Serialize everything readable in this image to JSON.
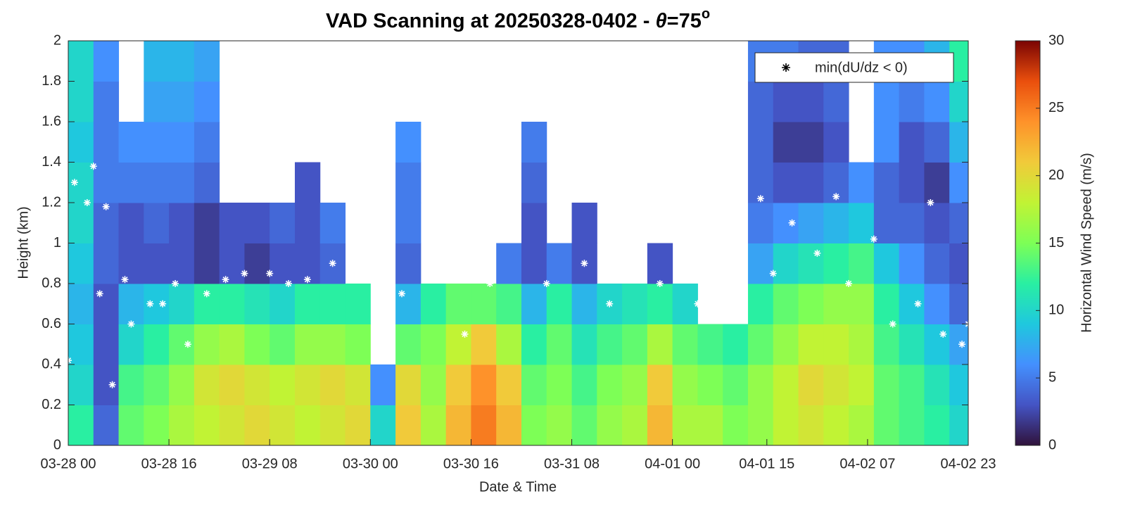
{
  "chart_data": {
    "type": "heatmap",
    "title_parts": [
      "VAD Scanning at 20250328-0402 - ",
      "θ",
      "=75",
      "o"
    ],
    "x_label": "Date & Time",
    "y_label": "Height (km)",
    "colorbar_label": "Horizontal Wind Speed (m/s)",
    "xlim": [
      "03-28 00",
      "04-02 23"
    ],
    "xticks": [
      "03-28 00",
      "03-28 16",
      "03-29 08",
      "03-30 00",
      "03-30 16",
      "03-31 08",
      "04-01 00",
      "04-01 15",
      "04-02 07",
      "04-02 23"
    ],
    "ylim": [
      0,
      2
    ],
    "yticks": [
      0,
      0.2,
      0.4,
      0.6,
      0.8,
      1,
      1.2,
      1.4,
      1.6,
      1.8,
      2
    ],
    "clim": [
      0,
      30
    ],
    "cticks": [
      0,
      5,
      10,
      15,
      20,
      25,
      30
    ],
    "colormap": [
      "#30123b",
      "#4454c4",
      "#4490fe",
      "#1fc8de",
      "#29efa2",
      "#7dff56",
      "#c1f334",
      "#f1ca3a",
      "#fe922a",
      "#ea4f0d",
      "#7a0403"
    ],
    "x_bins": [
      "03-28 00",
      "03-28 04",
      "03-28 08",
      "03-28 12",
      "03-28 16",
      "03-28 20",
      "03-29 00",
      "03-29 04",
      "03-29 08",
      "03-29 12",
      "03-29 16",
      "03-29 20",
      "03-30 00",
      "03-30 04",
      "03-30 08",
      "03-30 12",
      "03-30 16",
      "03-30 20",
      "03-31 00",
      "03-31 04",
      "03-31 08",
      "03-31 12",
      "03-31 16",
      "03-31 20",
      "04-01 00",
      "04-01 04",
      "04-01 08",
      "04-01 12",
      "04-01 16",
      "04-01 20",
      "04-02 00",
      "04-02 04",
      "04-02 08",
      "04-02 12",
      "04-02 16",
      "04-02 20",
      "04-02 23"
    ],
    "y_bins": [
      0,
      0.2,
      0.4,
      0.6,
      0.8,
      1,
      1.2,
      1.4,
      1.6,
      1.8,
      2
    ],
    "z": [
      [
        12,
        10,
        9,
        8,
        9,
        10,
        10,
        9,
        10,
        10
      ],
      [
        4,
        3,
        3,
        3,
        4,
        4,
        5,
        5,
        5,
        6
      ],
      [
        14,
        13,
        10,
        8,
        3,
        3,
        5,
        6,
        null,
        null
      ],
      [
        15,
        14,
        12,
        9,
        3,
        4,
        5,
        6,
        7,
        8
      ],
      [
        17,
        16,
        14,
        10,
        3,
        3,
        5,
        6,
        7,
        8
      ],
      [
        18,
        19,
        16,
        12,
        2,
        2,
        4,
        5,
        6,
        7
      ],
      [
        19,
        20,
        17,
        12,
        3,
        3,
        null,
        null,
        null,
        null
      ],
      [
        20,
        19,
        15,
        11,
        2,
        3,
        null,
        null,
        null,
        null
      ],
      [
        19,
        18,
        14,
        10,
        3,
        4,
        null,
        null,
        null,
        null
      ],
      [
        18,
        19,
        16,
        12,
        3,
        3,
        3,
        null,
        null,
        null
      ],
      [
        19,
        20,
        16,
        12,
        4,
        5,
        null,
        null,
        null,
        null
      ],
      [
        20,
        19,
        15,
        12,
        null,
        null,
        null,
        null,
        null,
        null
      ],
      [
        10,
        6,
        null,
        null,
        null,
        null,
        null,
        null,
        null,
        null
      ],
      [
        21,
        20,
        14,
        8,
        4,
        5,
        5,
        6,
        null,
        null
      ],
      [
        17,
        16,
        15,
        12,
        null,
        null,
        null,
        null,
        null,
        null
      ],
      [
        22,
        21,
        18,
        14,
        null,
        null,
        null,
        null,
        null,
        null
      ],
      [
        25,
        24,
        21,
        14,
        null,
        null,
        null,
        null,
        null,
        null
      ],
      [
        22,
        21,
        17,
        13,
        5,
        null,
        null,
        null,
        null,
        null
      ],
      [
        15,
        14,
        12,
        8,
        3,
        3,
        4,
        5,
        null,
        null
      ],
      [
        16,
        15,
        14,
        12,
        5,
        null,
        null,
        null,
        null,
        null
      ],
      [
        14,
        13,
        11,
        8,
        3,
        3,
        null,
        null,
        null,
        null
      ],
      [
        16,
        15,
        13,
        10,
        null,
        null,
        null,
        null,
        null,
        null
      ],
      [
        17,
        16,
        14,
        11,
        null,
        null,
        null,
        null,
        null,
        null
      ],
      [
        22,
        21,
        17,
        12,
        3,
        null,
        null,
        null,
        null,
        null
      ],
      [
        17,
        16,
        14,
        10,
        null,
        null,
        null,
        null,
        null,
        null
      ],
      [
        17,
        15,
        13,
        null,
        null,
        null,
        null,
        null,
        null,
        null
      ],
      [
        15,
        14,
        12,
        null,
        null,
        null,
        null,
        null,
        null,
        null
      ],
      [
        16,
        16,
        14,
        12,
        7,
        5,
        4,
        4,
        4,
        5
      ],
      [
        18,
        18,
        16,
        14,
        10,
        6,
        3,
        2,
        3,
        5
      ],
      [
        19,
        20,
        18,
        15,
        11,
        7,
        3,
        2,
        3,
        4
      ],
      [
        18,
        19,
        18,
        16,
        12,
        8,
        4,
        3,
        4,
        4
      ],
      [
        17,
        18,
        17,
        16,
        13,
        9,
        6,
        null,
        null,
        null
      ],
      [
        14,
        14,
        13,
        12,
        9,
        4,
        4,
        6,
        6,
        6
      ],
      [
        13,
        13,
        11,
        9,
        6,
        4,
        3,
        3,
        5,
        6
      ],
      [
        12,
        11,
        9,
        6,
        4,
        3,
        2,
        4,
        6,
        8
      ],
      [
        10,
        9,
        7,
        4,
        3,
        4,
        6,
        8,
        10,
        12
      ]
    ],
    "points": {
      "name": "min(dU/dz < 0)",
      "color": "#ffffff",
      "x": [
        "03-28 00",
        "03-28 01",
        "03-28 03",
        "03-28 04",
        "03-28 05",
        "03-28 06",
        "03-28 07",
        "03-28 09",
        "03-28 10",
        "03-28 13",
        "03-28 15",
        "03-28 17",
        "03-28 19",
        "03-28 22",
        "03-29 01",
        "03-29 04",
        "03-29 08",
        "03-29 11",
        "03-29 14",
        "03-29 18",
        "03-29 21",
        "03-30 01",
        "03-30 05",
        "03-30 10",
        "03-30 15",
        "03-30 19",
        "03-30 23",
        "03-31 04",
        "03-31 10",
        "03-31 14",
        "03-31 19",
        "03-31 22",
        "04-01 04",
        "04-01 09",
        "04-01 14",
        "04-01 16",
        "04-01 19",
        "04-01 23",
        "04-02 02",
        "04-02 04",
        "04-02 08",
        "04-02 11",
        "04-02 15",
        "04-02 17",
        "04-02 19",
        "04-02 22",
        "04-02 23"
      ],
      "y": [
        0.42,
        1.3,
        1.2,
        1.38,
        0.75,
        1.18,
        0.3,
        0.82,
        0.6,
        0.7,
        0.7,
        0.8,
        0.5,
        0.75,
        0.82,
        0.85,
        0.85,
        0.8,
        0.82,
        0.9,
        0.95,
        1.05,
        0.75,
        0.9,
        0.55,
        0.8,
        1.02,
        0.8,
        0.9,
        0.7,
        1.08,
        0.8,
        0.7,
        0.75,
        1.22,
        0.85,
        1.1,
        0.95,
        1.23,
        0.8,
        1.02,
        0.6,
        0.7,
        1.2,
        0.55,
        0.5,
        0.6
      ]
    }
  }
}
